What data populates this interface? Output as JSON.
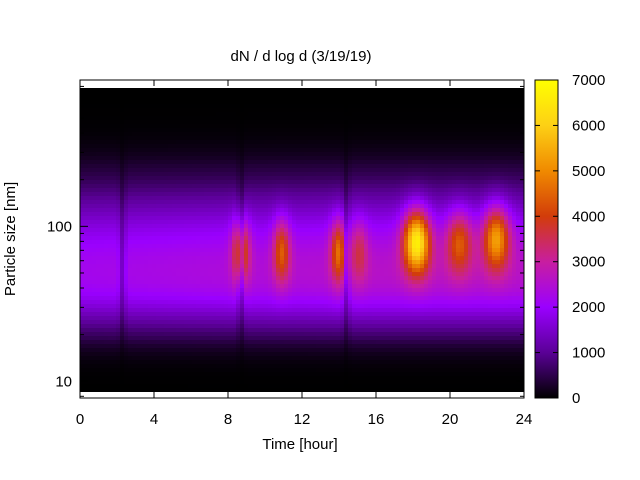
{
  "chart_data": {
    "type": "heatmap",
    "title": "dN / d log d (3/19/19)",
    "xlabel": "Time [hour]",
    "ylabel": "Particle size [nm]",
    "x_range": [
      0,
      24
    ],
    "x_ticks": [
      0,
      4,
      8,
      12,
      16,
      20,
      24
    ],
    "y_scale": "log",
    "y_range": [
      7.8,
      880
    ],
    "y_ticks": [
      10,
      100
    ],
    "color_range": [
      0,
      7000
    ],
    "color_ticks": [
      0,
      1000,
      2000,
      3000,
      4000,
      5000,
      6000,
      7000
    ],
    "colormap": "gnuplot black-purple-red-orange-yellow",
    "colormap_stops": [
      "#000000",
      "#5a0096",
      "#9a00ff",
      "#c81ea0",
      "#d23c0a",
      "#f08a00",
      "#fdd015",
      "#ffff00"
    ],
    "background_concentration_peak_size_nm": 70,
    "events": [
      {
        "time_hour": 8.7,
        "peak_size_nm": 70,
        "max_value": 4600
      },
      {
        "time_hour": 10.9,
        "peak_size_nm": 70,
        "max_value": 4300
      },
      {
        "time_hour": 14.0,
        "peak_size_nm": 70,
        "max_value": 4500
      },
      {
        "time_hour": 15.1,
        "peak_size_nm": 70,
        "max_value": 3400
      },
      {
        "time_hour": 18.2,
        "peak_size_nm": 80,
        "max_value": 6600
      },
      {
        "time_hour": 20.5,
        "peak_size_nm": 80,
        "max_value": 4300
      },
      {
        "time_hour": 22.5,
        "peak_size_nm": 85,
        "max_value": 5300
      }
    ],
    "dips": [
      {
        "time_hour": 2.3
      },
      {
        "time_hour": 8.7
      },
      {
        "time_hour": 14.4
      }
    ]
  }
}
